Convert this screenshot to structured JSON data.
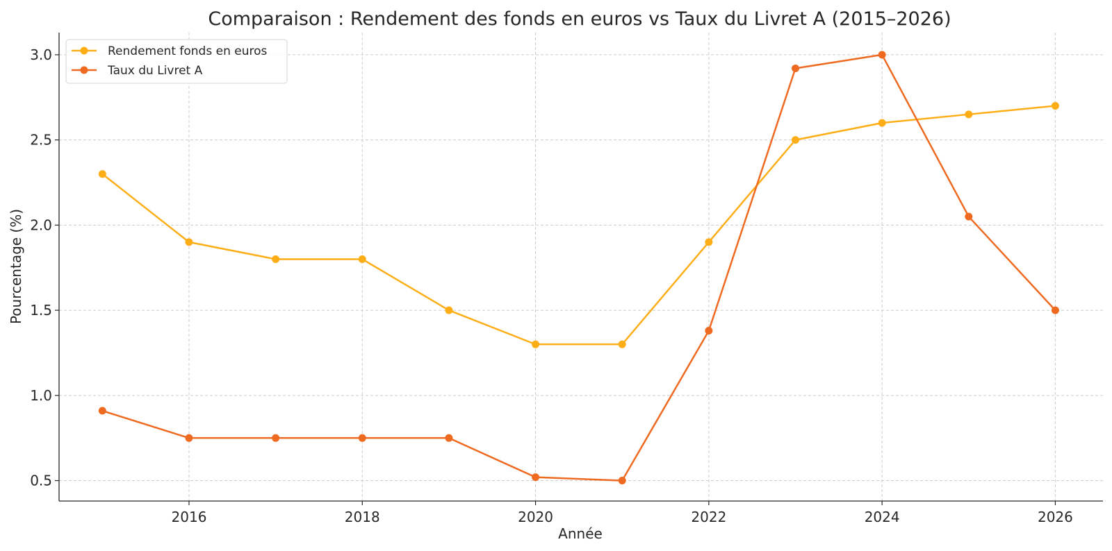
{
  "chart_data": {
    "type": "line",
    "title": "Comparaison : Rendement des fonds en euros vs Taux du Livret A (2015–2026)",
    "xlabel": "Année",
    "ylabel": "Pourcentage (%)",
    "x": [
      2015,
      2016,
      2017,
      2018,
      2019,
      2020,
      2021,
      2022,
      2023,
      2024,
      2025,
      2026
    ],
    "xlim": [
      2014.5,
      2026.55
    ],
    "ylim": [
      0.38,
      3.13
    ],
    "xticks": [
      2016,
      2018,
      2020,
      2022,
      2024,
      2026
    ],
    "yticks": [
      "0.5",
      "1.0",
      "1.5",
      "2.0",
      "2.5",
      "3.0"
    ],
    "grid": true,
    "legend_position": "top-left",
    "series": [
      {
        "name": "Rendement fonds en euros",
        "color": "#FDAE17",
        "values": [
          2.3,
          1.9,
          1.8,
          1.8,
          1.5,
          1.3,
          1.3,
          1.9,
          2.5,
          2.6,
          2.65,
          2.7
        ]
      },
      {
        "name": "Taux du Livret A",
        "color": "#EF6A21",
        "values": [
          0.91,
          0.75,
          0.75,
          0.75,
          0.75,
          0.52,
          0.5,
          1.38,
          2.92,
          3.0,
          2.05,
          1.5
        ]
      }
    ]
  }
}
